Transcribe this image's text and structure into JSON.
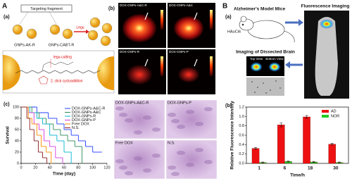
{
  "panel_labels": [
    "A",
    "B"
  ],
  "subpanel_labels": [
    "(a)",
    "(b)",
    "(c)",
    "(a)",
    "(b)"
  ],
  "scheme": {
    "targeting": "Targeting fragment",
    "gnp1": "GNPs-AK-R",
    "gnp2": "GNPs-CABT-R",
    "enzyme": "Legu",
    "cut": "legu-cutting",
    "click": "2. click cycloaddition"
  },
  "imaging": [
    "DOX-GNPs-A&C-R",
    "DOX-GNPs-A&C",
    "DOX-GNPs-R",
    "DOX-GNPs-P"
  ],
  "histology": [
    "DOX-GNPs-A&C-R",
    "DOX-GNPs-P",
    "Free DOX",
    "N.S."
  ],
  "mouse_study": {
    "model": "Alzheimer's Model Mice",
    "reagent": "HAuCl4",
    "fluor": "Fluorescence Imaging",
    "dissect": "Imaging of Dissected Brain",
    "top": "Top View",
    "bottom": "Bottom View"
  },
  "chart_data": [
    {
      "type": "line",
      "step": true,
      "x_label": "Time (day)",
      "y_label": "Survival",
      "xlim": [
        0,
        120
      ],
      "ylim": [
        0,
        100
      ],
      "xticks": [
        0,
        20,
        40,
        60,
        80,
        100,
        120
      ],
      "yticks": [
        0,
        20,
        40,
        60,
        80,
        100
      ],
      "series": [
        {
          "name": "DOX-GNPs-A&C-R",
          "color": "#1f3fff",
          "x": [
            0,
            22,
            38,
            50,
            60,
            70,
            80,
            90,
            100,
            112
          ],
          "values": [
            100,
            90,
            80,
            70,
            60,
            50,
            40,
            30,
            20,
            20
          ]
        },
        {
          "name": "DOX-GNPs-A&C",
          "color": "#2e8b57",
          "x": [
            0,
            15,
            25,
            35,
            45,
            55,
            65,
            75,
            85
          ],
          "values": [
            100,
            90,
            80,
            70,
            60,
            50,
            40,
            30,
            0
          ]
        },
        {
          "name": "DOX-GNPs-R",
          "color": "#00b5d0",
          "x": [
            0,
            12,
            22,
            30,
            40,
            50,
            60,
            70
          ],
          "values": [
            100,
            90,
            80,
            70,
            50,
            40,
            20,
            0
          ]
        },
        {
          "name": "DOX-GNPs-P",
          "color": "#d63be0",
          "x": [
            0,
            10,
            18,
            25,
            32,
            40,
            48,
            58
          ],
          "values": [
            100,
            90,
            70,
            60,
            40,
            30,
            10,
            0
          ]
        },
        {
          "name": "Free DOX",
          "color": "#ff8c00",
          "x": [
            0,
            10,
            15,
            22,
            28,
            35,
            42
          ],
          "values": [
            100,
            80,
            70,
            50,
            30,
            20,
            0
          ]
        },
        {
          "name": "N.S.",
          "color": "#8b1a1a",
          "x": [
            0,
            8,
            12,
            18,
            24,
            30,
            36
          ],
          "values": [
            100,
            80,
            60,
            40,
            20,
            10,
            0
          ]
        }
      ]
    },
    {
      "type": "bar",
      "x_label": "Time/h",
      "y_label": "Relative Fluorescence Intensity",
      "categories": [
        "1",
        "6",
        "18",
        "30"
      ],
      "ylim": [
        0,
        1.2
      ],
      "yticks": [
        {
          "value": 0,
          "label": "0.0"
        },
        0.2,
        0.4,
        0.6,
        0.8,
        {
          "value": 1,
          "label": "1.0"
        },
        1.2
      ],
      "legend": "upper right",
      "series": [
        {
          "name": "AD",
          "color": "#ee1111",
          "values": [
            0.32,
            0.82,
            0.99,
            0.41
          ],
          "errors": [
            0.02,
            0.04,
            0.03,
            0.02
          ]
        },
        {
          "name": "NOR",
          "color": "#22cc22",
          "values": [
            0.02,
            0.04,
            0.03,
            0.02
          ],
          "errors": [
            0.01,
            0.01,
            0.01,
            0.01
          ]
        }
      ]
    }
  ]
}
